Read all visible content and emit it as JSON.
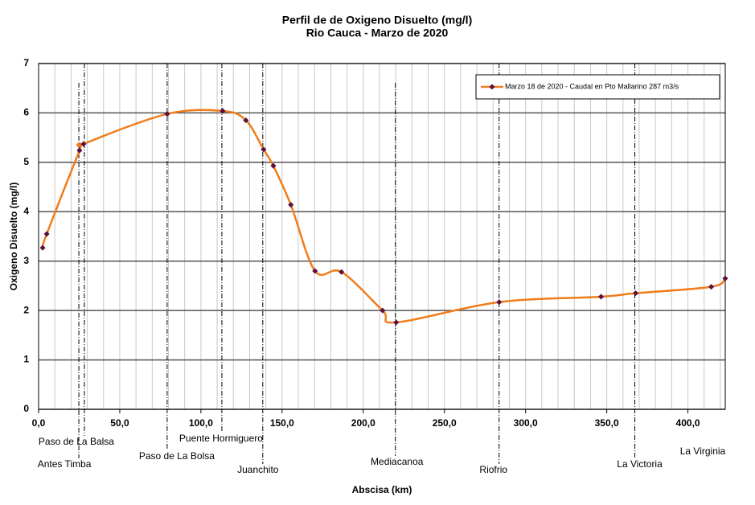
{
  "chart_data": {
    "type": "line",
    "title": "Perfil de de Oxigeno Disuelto (mg/l)",
    "subtitle": "Rio Cauca  - Marzo de 2020",
    "x_label": "Abscisa (km)",
    "y_label": "Oxigeno Disuelto  (mg/l)",
    "x": [
      2.5,
      5,
      25.2,
      27.7,
      79.2,
      113.4,
      127.7,
      138.6,
      144.6,
      155.4,
      170.3,
      186.6,
      211.9,
      220.3,
      283.7,
      346.5,
      367.8,
      414.4,
      423
    ],
    "series": [
      {
        "name": "Marzo 18 de 2020 - Caudal en Pto Mallarino 287 m3/s",
        "color": "#f07d1a",
        "marker_color": "#5a1040",
        "values": [
          3.27,
          3.55,
          5.24,
          5.37,
          5.98,
          6.04,
          5.85,
          5.26,
          4.93,
          4.14,
          2.8,
          2.78,
          2.0,
          1.76,
          2.17,
          2.28,
          2.35,
          2.48,
          2.65
        ]
      }
    ],
    "xlim": [
      0,
      423
    ],
    "ylim": [
      0,
      7
    ],
    "xticks": [
      {
        "value": 0,
        "label": "0,0"
      },
      {
        "value": 50,
        "label": "50,0"
      },
      {
        "value": 100,
        "label": "100,0"
      },
      {
        "value": 150,
        "label": "150,0"
      },
      {
        "value": 200,
        "label": "200,0"
      },
      {
        "value": 250,
        "label": "250,0"
      },
      {
        "value": 300,
        "label": "300,0"
      },
      {
        "value": 350,
        "label": "350,0"
      },
      {
        "value": 400,
        "label": "400,0"
      }
    ],
    "yticks": [
      0,
      1,
      2,
      3,
      4,
      5,
      6,
      7
    ],
    "grid": true,
    "legend": "upper right",
    "stations": [
      {
        "name": "Antes Timba",
        "x": 24.8
      },
      {
        "name": "Paso de La Balsa",
        "x": 28.2
      },
      {
        "name": "Paso de La Bolsa",
        "x": 79.2
      },
      {
        "name": "Puente Hormiguero",
        "x": 112.9
      },
      {
        "name": "Juanchito",
        "x": 138.1
      },
      {
        "name": "Mediacanoa",
        "x": 219.8
      },
      {
        "name": "Riofrio",
        "x": 283.7
      },
      {
        "name": "La Victoria",
        "x": 367.3
      },
      {
        "name": "La Virginia",
        "x": 423
      }
    ]
  }
}
